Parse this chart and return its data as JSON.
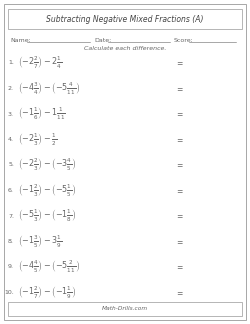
{
  "title": "Subtracting Negative Mixed Fractions (A)",
  "subtitle": "Calculate each difference.",
  "name_label": "Name:",
  "date_label": "Date:",
  "score_label": "Score:",
  "footer": "Math-Drills.com",
  "problems": [
    {
      "num": "1.",
      "expr": "\\left(-2\\frac{2}{7}\\right)-2\\frac{1}{4}"
    },
    {
      "num": "2.",
      "expr": "\\left(-4\\frac{3}{4}\\right)-\\left(-5\\frac{4}{11}\\right)"
    },
    {
      "num": "3.",
      "expr": "\\left(-1\\frac{1}{6}\\right)-1\\frac{1}{11}"
    },
    {
      "num": "4.",
      "expr": "\\left(-2\\frac{1}{3}\\right)-\\frac{1}{2}"
    },
    {
      "num": "5.",
      "expr": "\\left(-2\\frac{2}{3}\\right)-\\left(-3\\frac{4}{5}\\right)"
    },
    {
      "num": "6.",
      "expr": "\\left(-1\\frac{2}{3}\\right)-\\left(-5\\frac{1}{5}\\right)"
    },
    {
      "num": "7.",
      "expr": "\\left(-5\\frac{1}{3}\\right)-\\left(-1\\frac{1}{8}\\right)"
    },
    {
      "num": "8.",
      "expr": "\\left(-1\\frac{3}{5}\\right)-3\\frac{1}{9}"
    },
    {
      "num": "9.",
      "expr": "\\left(-4\\frac{4}{5}\\right)-\\left(-5\\frac{2}{11}\\right)"
    },
    {
      "num": "10.",
      "expr": "\\left(-1\\frac{2}{7}\\right)-\\left(-1\\frac{1}{9}\\right)"
    }
  ],
  "bg_color": "#ffffff",
  "border_color": "#999999",
  "text_color": "#666666",
  "title_color": "#444444",
  "title_fontsize": 5.5,
  "header_fontsize": 4.5,
  "problem_fontsize": 5.8,
  "number_fontsize": 4.5,
  "equals_fontsize": 5.5,
  "footer_fontsize": 4.2,
  "subtitle_fontsize": 4.5
}
